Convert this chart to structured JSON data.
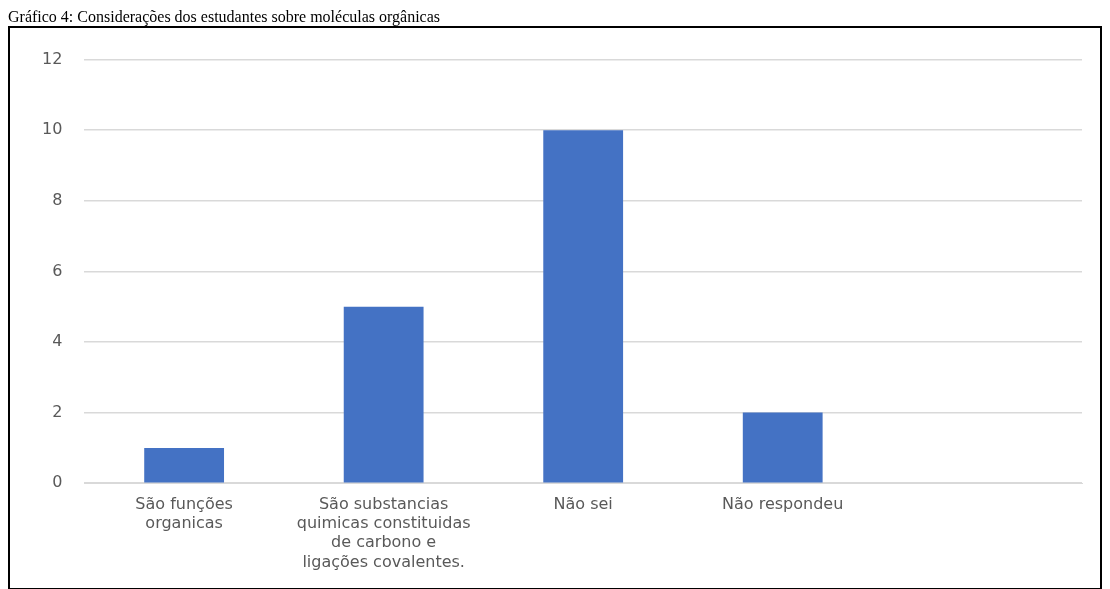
{
  "chart_data": {
    "type": "bar",
    "title": "Gráfico 4: Considerações dos estudantes sobre moléculas orgânicas",
    "categories": [
      "São funções organicas",
      "São substancias quimicas constituidas de carbono e ligações covalentes.",
      "Não sei",
      "Não respondeu",
      null
    ],
    "values": [
      1,
      5,
      10,
      2,
      null
    ],
    "color": "#4472c4",
    "ylim": [
      0,
      12
    ],
    "yticks": [
      0,
      2,
      4,
      6,
      8,
      10,
      12
    ],
    "grid": "y"
  }
}
